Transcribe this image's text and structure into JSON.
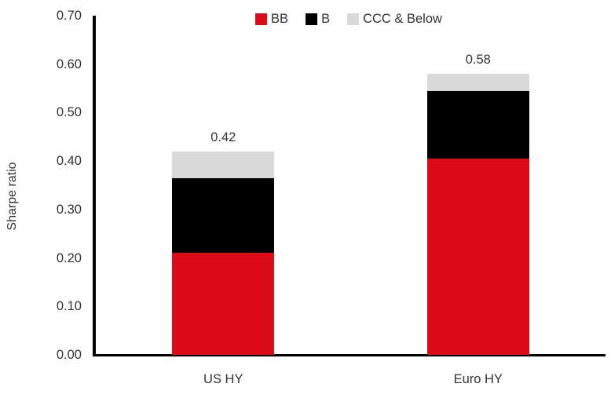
{
  "chart_data": {
    "type": "bar",
    "stacked": true,
    "title": "",
    "xlabel": "",
    "ylabel": "Sharpe ratio",
    "ylim": [
      0,
      0.7
    ],
    "ytick_labels": [
      "0.00",
      "0.10",
      "0.20",
      "0.30",
      "0.40",
      "0.50",
      "0.60",
      "0.70"
    ],
    "grid": false,
    "legend_position": "top-center",
    "categories": [
      "US HY",
      "Euro HY"
    ],
    "series": [
      {
        "name": "BB",
        "color": "#db0c18",
        "values": [
          0.21,
          0.405
        ]
      },
      {
        "name": "B",
        "color": "#000000",
        "values": [
          0.155,
          0.14
        ]
      },
      {
        "name": "CCC & Below",
        "color": "#d9d9d9",
        "values": [
          0.055,
          0.035
        ]
      }
    ],
    "totals": [
      0.42,
      0.58
    ],
    "total_labels": [
      "0.42",
      "0.58"
    ],
    "axis_color": "#000000",
    "text_color": "#333333"
  }
}
